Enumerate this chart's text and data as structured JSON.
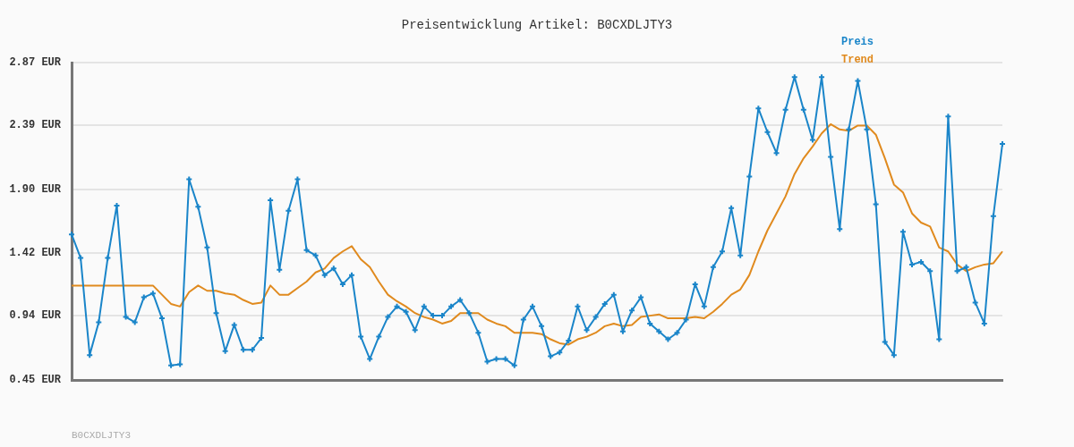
{
  "chart_data": {
    "type": "line",
    "title": "Preisentwicklung Artikel: B0CXDLJTY3",
    "categories": [
      null,
      null,
      null,
      null,
      null,
      null,
      null,
      null,
      null,
      null,
      null,
      null,
      null,
      null,
      null,
      null,
      null,
      null,
      null,
      null,
      null,
      null,
      null,
      null,
      null,
      null,
      null,
      null,
      null,
      null,
      null,
      null,
      null,
      null,
      null,
      null,
      null,
      null,
      null,
      null,
      null,
      null,
      null,
      null,
      null,
      null,
      null,
      null,
      null,
      null,
      null,
      null,
      null,
      null,
      null,
      null,
      null,
      null,
      null,
      null,
      null,
      null,
      null,
      null,
      null,
      null,
      null,
      null,
      null,
      null,
      null,
      null,
      null,
      null,
      null,
      null,
      null,
      null,
      null,
      null,
      null,
      null,
      null,
      null,
      null,
      null,
      null,
      null,
      null,
      null,
      null,
      null,
      null,
      null,
      null,
      null,
      null,
      null,
      null,
      null,
      null,
      null,
      null,
      null
    ],
    "series": [
      {
        "name": "Preis",
        "color": "#1a85c9",
        "marker": "cross",
        "values": [
          1.56,
          1.38,
          0.64,
          0.89,
          1.38,
          1.78,
          0.93,
          0.89,
          1.08,
          1.11,
          0.92,
          0.56,
          0.57,
          1.98,
          1.77,
          1.46,
          0.96,
          0.67,
          0.87,
          0.68,
          0.68,
          0.77,
          1.82,
          1.29,
          1.74,
          1.98,
          1.44,
          1.4,
          1.25,
          1.3,
          1.18,
          1.25,
          0.78,
          0.61,
          0.78,
          0.93,
          1.01,
          0.97,
          0.83,
          1.01,
          0.94,
          0.94,
          1.01,
          1.06,
          0.96,
          0.81,
          0.59,
          0.61,
          0.61,
          0.56,
          0.91,
          1.01,
          0.86,
          0.63,
          0.66,
          0.75,
          1.01,
          0.83,
          0.93,
          1.03,
          1.1,
          0.82,
          0.98,
          1.08,
          0.88,
          0.82,
          0.76,
          0.81,
          0.91,
          1.18,
          1.01,
          1.31,
          1.43,
          1.76,
          1.4,
          2.0,
          2.52,
          2.34,
          2.18,
          2.51,
          2.76,
          2.51,
          2.28,
          2.76,
          2.15,
          1.6,
          2.36,
          2.73,
          2.36,
          1.79,
          0.74,
          0.64,
          1.58,
          1.33,
          1.35,
          1.28,
          0.76,
          2.46,
          1.28,
          1.31,
          1.04,
          0.88,
          1.7,
          2.25
        ]
      },
      {
        "name": "Trend",
        "color": "#e08a1e",
        "marker": "none",
        "values": [
          1.17,
          1.17,
          1.17,
          1.17,
          1.17,
          1.17,
          1.17,
          1.17,
          1.17,
          1.17,
          1.1,
          1.03,
          1.01,
          1.12,
          1.17,
          1.13,
          1.13,
          1.11,
          1.1,
          1.06,
          1.03,
          1.04,
          1.17,
          1.1,
          1.1,
          1.15,
          1.2,
          1.27,
          1.3,
          1.38,
          1.43,
          1.47,
          1.37,
          1.31,
          1.2,
          1.1,
          1.05,
          1.01,
          0.96,
          0.93,
          0.91,
          0.88,
          0.9,
          0.96,
          0.96,
          0.96,
          0.91,
          0.88,
          0.86,
          0.81,
          0.81,
          0.81,
          0.8,
          0.76,
          0.73,
          0.72,
          0.76,
          0.78,
          0.81,
          0.86,
          0.88,
          0.86,
          0.87,
          0.93,
          0.94,
          0.95,
          0.92,
          0.92,
          0.92,
          0.93,
          0.92,
          0.97,
          1.03,
          1.1,
          1.14,
          1.25,
          1.43,
          1.59,
          1.72,
          1.85,
          2.02,
          2.14,
          2.23,
          2.33,
          2.4,
          2.36,
          2.35,
          2.39,
          2.39,
          2.32,
          2.14,
          1.94,
          1.88,
          1.72,
          1.65,
          1.62,
          1.46,
          1.43,
          1.33,
          1.28,
          1.31,
          1.33,
          1.34,
          1.43
        ]
      }
    ],
    "ylim": [
      0.45,
      2.87
    ],
    "yticks": [
      {
        "value": 0.45,
        "label": "0.45 EUR"
      },
      {
        "value": 0.94,
        "label": "0.94 EUR"
      },
      {
        "value": 1.42,
        "label": "1.42 EUR"
      },
      {
        "value": 1.9,
        "label": "1.90 EUR"
      },
      {
        "value": 2.39,
        "label": "2.39 EUR"
      },
      {
        "value": 2.87,
        "label": "2.87 EUR"
      }
    ],
    "tick_labels": "y",
    "grid": "y",
    "legend": "top right",
    "annotations": [
      "B0CXDLJTY3"
    ]
  }
}
